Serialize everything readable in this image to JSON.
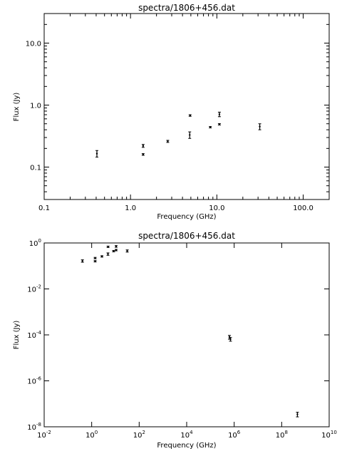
{
  "chart_data": [
    {
      "type": "scatter",
      "title": "spectra/1806+456.dat",
      "xlabel": "Frequency (GHz)",
      "ylabel": "Flux (Jy)",
      "x_scale": "log",
      "y_scale": "log",
      "xlim": [
        0.1,
        200
      ],
      "ylim": [
        0.03,
        30
      ],
      "x_ticks": [
        0.1,
        1,
        10,
        100
      ],
      "x_tick_labels": [
        "0.1",
        "1.0",
        "10.0",
        "100.0"
      ],
      "y_ticks": [
        0.1,
        1,
        10
      ],
      "y_tick_labels": [
        "0.1",
        "1.0",
        "10.0"
      ],
      "points": [
        {
          "x": 0.408,
          "y": 0.165,
          "err": 0.02
        },
        {
          "x": 1.4,
          "y": 0.22,
          "err": 0.012
        },
        {
          "x": 1.4,
          "y": 0.16,
          "err": 0.005
        },
        {
          "x": 2.7,
          "y": 0.26,
          "err": 0.01
        },
        {
          "x": 4.85,
          "y": 0.33,
          "err": 0.04
        },
        {
          "x": 4.9,
          "y": 0.68,
          "err": 0.02
        },
        {
          "x": 8.4,
          "y": 0.44,
          "err": 0.01
        },
        {
          "x": 10.7,
          "y": 0.71,
          "err": 0.06
        },
        {
          "x": 10.7,
          "y": 0.49,
          "err": 0.01
        },
        {
          "x": 31.4,
          "y": 0.45,
          "err": 0.05
        }
      ]
    },
    {
      "type": "scatter",
      "title": "spectra/1806+456.dat",
      "xlabel": "Frequency (GHz)",
      "ylabel": "Flux (Jy)",
      "x_scale": "log",
      "y_scale": "log",
      "xlim": [
        0.01,
        10000000000
      ],
      "ylim": [
        1e-08,
        1
      ],
      "x_ticks": [
        0.01,
        1,
        100,
        10000,
        1000000,
        100000000,
        10000000000
      ],
      "x_tick_base": [
        "10",
        "10",
        "10",
        "10",
        "10",
        "10",
        "10"
      ],
      "x_tick_exp": [
        "-2",
        "0",
        "2",
        "4",
        "6",
        "8",
        "10"
      ],
      "y_ticks": [
        1e-08,
        1e-06,
        0.0001,
        0.01,
        1
      ],
      "y_tick_base": [
        "10",
        "10",
        "10",
        "10",
        "10"
      ],
      "y_tick_exp": [
        "-8",
        "-6",
        "-4",
        "-2",
        "0"
      ],
      "points": [
        {
          "x": 0.408,
          "y": 0.165,
          "err": 0.02
        },
        {
          "x": 1.4,
          "y": 0.22,
          "err": 0.012
        },
        {
          "x": 1.4,
          "y": 0.16,
          "err": 0.005
        },
        {
          "x": 2.7,
          "y": 0.26,
          "err": 0.01
        },
        {
          "x": 4.85,
          "y": 0.33,
          "err": 0.04
        },
        {
          "x": 4.9,
          "y": 0.68,
          "err": 0.02
        },
        {
          "x": 8.4,
          "y": 0.44,
          "err": 0.01
        },
        {
          "x": 10.7,
          "y": 0.71,
          "err": 0.06
        },
        {
          "x": 10.7,
          "y": 0.49,
          "err": 0.01
        },
        {
          "x": 31.4,
          "y": 0.45,
          "err": 0.05
        },
        {
          "x": 630000,
          "y": 8e-05,
          "err": 1.5e-05
        },
        {
          "x": 700000,
          "y": 6.5e-05,
          "err": 1.2e-05
        },
        {
          "x": 460000000,
          "y": 3.5e-08,
          "err": 8e-09
        }
      ]
    }
  ]
}
